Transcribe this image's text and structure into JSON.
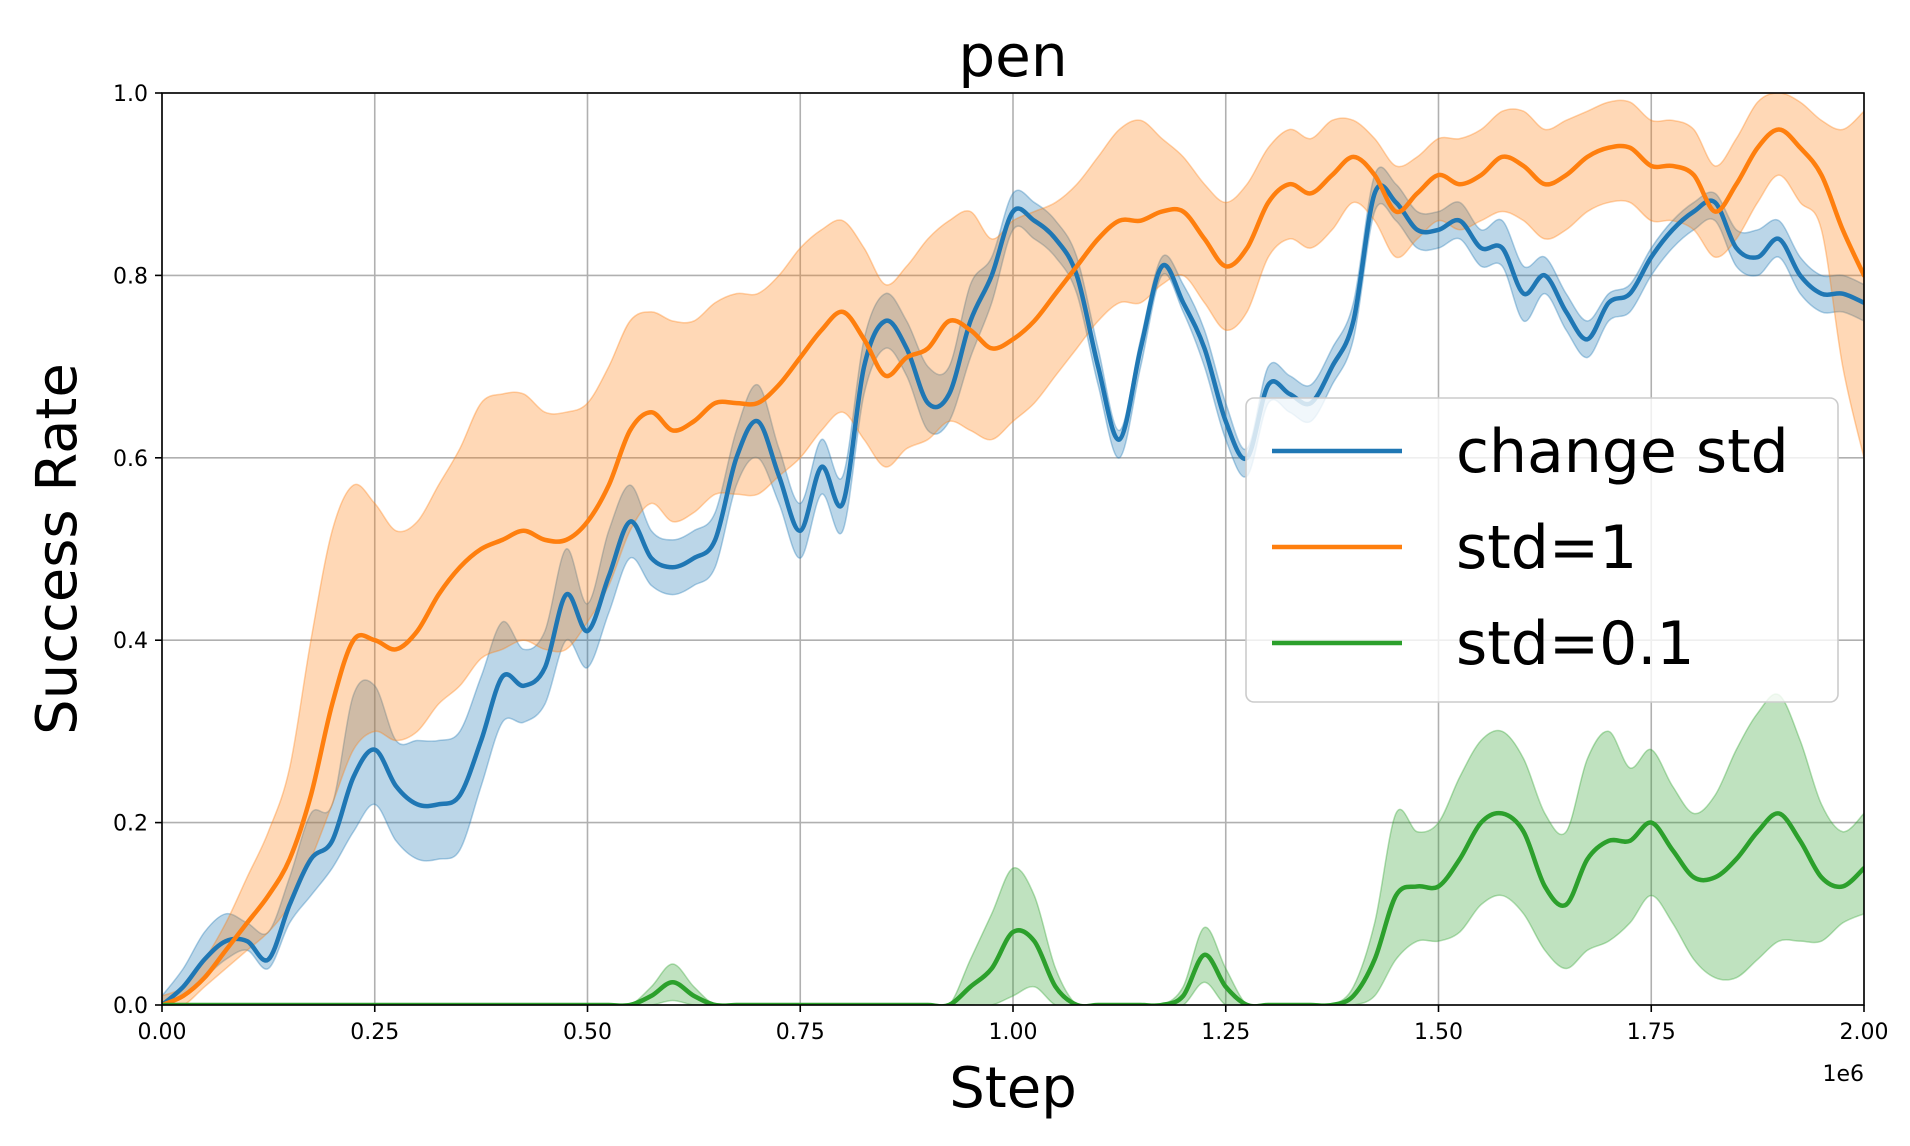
{
  "chart_data": {
    "type": "line",
    "title": "pen",
    "xlabel": "Step",
    "ylabel": "Success Rate",
    "x_multiplier": "1e6",
    "xlim": [
      0,
      2.0
    ],
    "ylim": [
      0,
      1.0
    ],
    "xticks": [
      "0.00",
      "0.25",
      "0.50",
      "0.75",
      "1.00",
      "1.25",
      "1.50",
      "1.75",
      "2.00"
    ],
    "yticks": [
      "0.0",
      "0.2",
      "0.4",
      "0.6",
      "0.8",
      "1.0"
    ],
    "grid": true,
    "legend_position": "center-right",
    "x": [
      0.0,
      0.025,
      0.05,
      0.075,
      0.1,
      0.125,
      0.15,
      0.175,
      0.2,
      0.225,
      0.25,
      0.275,
      0.3,
      0.325,
      0.35,
      0.375,
      0.4,
      0.425,
      0.45,
      0.475,
      0.5,
      0.525,
      0.55,
      0.575,
      0.6,
      0.625,
      0.65,
      0.675,
      0.7,
      0.725,
      0.75,
      0.775,
      0.8,
      0.825,
      0.85,
      0.875,
      0.9,
      0.925,
      0.95,
      0.975,
      1.0,
      1.025,
      1.05,
      1.075,
      1.1,
      1.125,
      1.15,
      1.175,
      1.2,
      1.225,
      1.25,
      1.275,
      1.3,
      1.325,
      1.35,
      1.375,
      1.4,
      1.425,
      1.45,
      1.475,
      1.5,
      1.525,
      1.55,
      1.575,
      1.6,
      1.625,
      1.65,
      1.675,
      1.7,
      1.725,
      1.75,
      1.775,
      1.8,
      1.825,
      1.85,
      1.875,
      1.9,
      1.925,
      1.95,
      1.975,
      2.0
    ],
    "series": [
      {
        "name": "change std",
        "color": "#1f77b4",
        "values": [
          0.0,
          0.02,
          0.05,
          0.07,
          0.07,
          0.05,
          0.11,
          0.16,
          0.18,
          0.25,
          0.28,
          0.24,
          0.22,
          0.22,
          0.23,
          0.29,
          0.36,
          0.35,
          0.37,
          0.45,
          0.41,
          0.47,
          0.53,
          0.49,
          0.48,
          0.49,
          0.51,
          0.6,
          0.64,
          0.58,
          0.52,
          0.59,
          0.55,
          0.7,
          0.75,
          0.72,
          0.66,
          0.67,
          0.75,
          0.8,
          0.87,
          0.86,
          0.84,
          0.8,
          0.7,
          0.62,
          0.72,
          0.81,
          0.77,
          0.72,
          0.64,
          0.6,
          0.68,
          0.67,
          0.66,
          0.7,
          0.75,
          0.89,
          0.88,
          0.85,
          0.85,
          0.86,
          0.83,
          0.83,
          0.78,
          0.8,
          0.76,
          0.73,
          0.77,
          0.78,
          0.82,
          0.85,
          0.87,
          0.88,
          0.83,
          0.82,
          0.84,
          0.8,
          0.78,
          0.78,
          0.77
        ],
        "upper": [
          0.01,
          0.04,
          0.08,
          0.1,
          0.09,
          0.08,
          0.14,
          0.21,
          0.22,
          0.34,
          0.35,
          0.29,
          0.29,
          0.29,
          0.3,
          0.36,
          0.42,
          0.39,
          0.41,
          0.5,
          0.44,
          0.52,
          0.57,
          0.52,
          0.51,
          0.52,
          0.54,
          0.63,
          0.68,
          0.61,
          0.55,
          0.62,
          0.58,
          0.73,
          0.78,
          0.75,
          0.7,
          0.7,
          0.79,
          0.82,
          0.89,
          0.88,
          0.86,
          0.82,
          0.72,
          0.63,
          0.73,
          0.82,
          0.79,
          0.74,
          0.66,
          0.61,
          0.7,
          0.69,
          0.68,
          0.72,
          0.77,
          0.91,
          0.9,
          0.87,
          0.87,
          0.88,
          0.85,
          0.86,
          0.81,
          0.82,
          0.78,
          0.75,
          0.78,
          0.79,
          0.83,
          0.86,
          0.88,
          0.89,
          0.85,
          0.85,
          0.86,
          0.82,
          0.8,
          0.8,
          0.79
        ],
        "lower": [
          0.0,
          0.01,
          0.03,
          0.05,
          0.06,
          0.04,
          0.09,
          0.12,
          0.15,
          0.19,
          0.22,
          0.18,
          0.16,
          0.16,
          0.17,
          0.24,
          0.31,
          0.31,
          0.33,
          0.4,
          0.37,
          0.43,
          0.49,
          0.46,
          0.45,
          0.46,
          0.48,
          0.57,
          0.6,
          0.55,
          0.49,
          0.56,
          0.52,
          0.67,
          0.72,
          0.69,
          0.63,
          0.64,
          0.71,
          0.77,
          0.85,
          0.84,
          0.82,
          0.78,
          0.68,
          0.6,
          0.7,
          0.8,
          0.76,
          0.7,
          0.62,
          0.58,
          0.66,
          0.65,
          0.64,
          0.68,
          0.73,
          0.87,
          0.86,
          0.83,
          0.83,
          0.84,
          0.81,
          0.81,
          0.75,
          0.78,
          0.74,
          0.71,
          0.75,
          0.76,
          0.8,
          0.83,
          0.85,
          0.86,
          0.81,
          0.8,
          0.82,
          0.78,
          0.76,
          0.76,
          0.75
        ]
      },
      {
        "name": "std=1",
        "color": "#ff7f0e",
        "values": [
          0.0,
          0.01,
          0.03,
          0.06,
          0.09,
          0.12,
          0.16,
          0.23,
          0.33,
          0.4,
          0.4,
          0.39,
          0.41,
          0.45,
          0.48,
          0.5,
          0.51,
          0.52,
          0.51,
          0.51,
          0.53,
          0.57,
          0.63,
          0.65,
          0.63,
          0.64,
          0.66,
          0.66,
          0.66,
          0.68,
          0.71,
          0.74,
          0.76,
          0.73,
          0.69,
          0.71,
          0.72,
          0.75,
          0.74,
          0.72,
          0.73,
          0.75,
          0.78,
          0.81,
          0.84,
          0.86,
          0.86,
          0.87,
          0.87,
          0.84,
          0.81,
          0.83,
          0.88,
          0.9,
          0.89,
          0.91,
          0.93,
          0.91,
          0.87,
          0.89,
          0.91,
          0.9,
          0.91,
          0.93,
          0.92,
          0.9,
          0.91,
          0.93,
          0.94,
          0.94,
          0.92,
          0.92,
          0.91,
          0.87,
          0.9,
          0.94,
          0.96,
          0.94,
          0.91,
          0.85,
          0.8
        ],
        "upper": [
          0.01,
          0.02,
          0.05,
          0.09,
          0.14,
          0.19,
          0.26,
          0.4,
          0.52,
          0.57,
          0.55,
          0.52,
          0.53,
          0.57,
          0.61,
          0.66,
          0.67,
          0.67,
          0.65,
          0.65,
          0.66,
          0.7,
          0.75,
          0.76,
          0.75,
          0.75,
          0.77,
          0.78,
          0.78,
          0.8,
          0.83,
          0.85,
          0.86,
          0.83,
          0.79,
          0.81,
          0.84,
          0.86,
          0.87,
          0.84,
          0.86,
          0.87,
          0.88,
          0.9,
          0.93,
          0.96,
          0.97,
          0.95,
          0.93,
          0.9,
          0.88,
          0.9,
          0.94,
          0.96,
          0.95,
          0.97,
          0.97,
          0.95,
          0.92,
          0.93,
          0.95,
          0.95,
          0.96,
          0.98,
          0.98,
          0.96,
          0.97,
          0.98,
          0.99,
          0.99,
          0.97,
          0.97,
          0.96,
          0.92,
          0.95,
          0.99,
          1.0,
          0.99,
          0.97,
          0.96,
          0.98
        ],
        "lower": [
          0.0,
          0.0,
          0.02,
          0.04,
          0.06,
          0.08,
          0.11,
          0.16,
          0.22,
          0.28,
          0.3,
          0.29,
          0.3,
          0.33,
          0.35,
          0.38,
          0.39,
          0.4,
          0.39,
          0.39,
          0.42,
          0.46,
          0.52,
          0.55,
          0.53,
          0.54,
          0.56,
          0.56,
          0.56,
          0.58,
          0.6,
          0.63,
          0.65,
          0.62,
          0.59,
          0.61,
          0.62,
          0.64,
          0.63,
          0.62,
          0.64,
          0.66,
          0.69,
          0.72,
          0.75,
          0.77,
          0.77,
          0.79,
          0.8,
          0.77,
          0.74,
          0.76,
          0.82,
          0.84,
          0.83,
          0.85,
          0.88,
          0.86,
          0.82,
          0.84,
          0.86,
          0.85,
          0.86,
          0.87,
          0.86,
          0.84,
          0.85,
          0.87,
          0.88,
          0.88,
          0.86,
          0.86,
          0.85,
          0.82,
          0.84,
          0.88,
          0.91,
          0.88,
          0.85,
          0.7,
          0.6
        ]
      },
      {
        "name": "std=0.1",
        "color": "#2ca02c",
        "values": [
          0.0,
          0.0,
          0.0,
          0.0,
          0.0,
          0.0,
          0.0,
          0.0,
          0.0,
          0.0,
          0.0,
          0.0,
          0.0,
          0.0,
          0.0,
          0.0,
          0.0,
          0.0,
          0.0,
          0.0,
          0.0,
          0.0,
          0.0,
          0.01,
          0.025,
          0.01,
          0.0,
          0.0,
          0.0,
          0.0,
          0.0,
          0.0,
          0.0,
          0.0,
          0.0,
          0.0,
          0.0,
          0.0,
          0.02,
          0.04,
          0.08,
          0.07,
          0.02,
          0.0,
          0.0,
          0.0,
          0.0,
          0.0,
          0.01,
          0.055,
          0.02,
          0.0,
          0.0,
          0.0,
          0.0,
          0.0,
          0.01,
          0.05,
          0.12,
          0.13,
          0.13,
          0.16,
          0.2,
          0.21,
          0.19,
          0.13,
          0.11,
          0.16,
          0.18,
          0.18,
          0.2,
          0.17,
          0.14,
          0.14,
          0.16,
          0.19,
          0.21,
          0.18,
          0.14,
          0.13,
          0.15
        ],
        "upper": [
          0.0,
          0.0,
          0.0,
          0.0,
          0.0,
          0.0,
          0.0,
          0.0,
          0.0,
          0.0,
          0.0,
          0.0,
          0.0,
          0.0,
          0.0,
          0.0,
          0.0,
          0.0,
          0.0,
          0.0,
          0.0,
          0.0,
          0.0,
          0.02,
          0.045,
          0.02,
          0.0,
          0.0,
          0.0,
          0.0,
          0.0,
          0.0,
          0.0,
          0.0,
          0.0,
          0.0,
          0.0,
          0.0,
          0.05,
          0.1,
          0.15,
          0.12,
          0.04,
          0.0,
          0.0,
          0.0,
          0.0,
          0.0,
          0.02,
          0.085,
          0.04,
          0.0,
          0.0,
          0.0,
          0.0,
          0.0,
          0.02,
          0.09,
          0.21,
          0.19,
          0.2,
          0.25,
          0.29,
          0.3,
          0.27,
          0.21,
          0.19,
          0.27,
          0.3,
          0.26,
          0.28,
          0.24,
          0.21,
          0.23,
          0.28,
          0.32,
          0.34,
          0.29,
          0.22,
          0.19,
          0.21
        ],
        "lower": [
          0.0,
          0.0,
          0.0,
          0.0,
          0.0,
          0.0,
          0.0,
          0.0,
          0.0,
          0.0,
          0.0,
          0.0,
          0.0,
          0.0,
          0.0,
          0.0,
          0.0,
          0.0,
          0.0,
          0.0,
          0.0,
          0.0,
          0.0,
          0.0,
          0.005,
          0.0,
          0.0,
          0.0,
          0.0,
          0.0,
          0.0,
          0.0,
          0.0,
          0.0,
          0.0,
          0.0,
          0.0,
          0.0,
          0.0,
          0.0,
          0.01,
          0.02,
          0.0,
          0.0,
          0.0,
          0.0,
          0.0,
          0.0,
          0.0,
          0.025,
          0.0,
          0.0,
          0.0,
          0.0,
          0.0,
          0.0,
          0.0,
          0.01,
          0.05,
          0.07,
          0.07,
          0.08,
          0.11,
          0.12,
          0.1,
          0.06,
          0.04,
          0.06,
          0.07,
          0.09,
          0.12,
          0.09,
          0.05,
          0.03,
          0.03,
          0.05,
          0.07,
          0.07,
          0.07,
          0.09,
          0.1
        ]
      }
    ]
  }
}
